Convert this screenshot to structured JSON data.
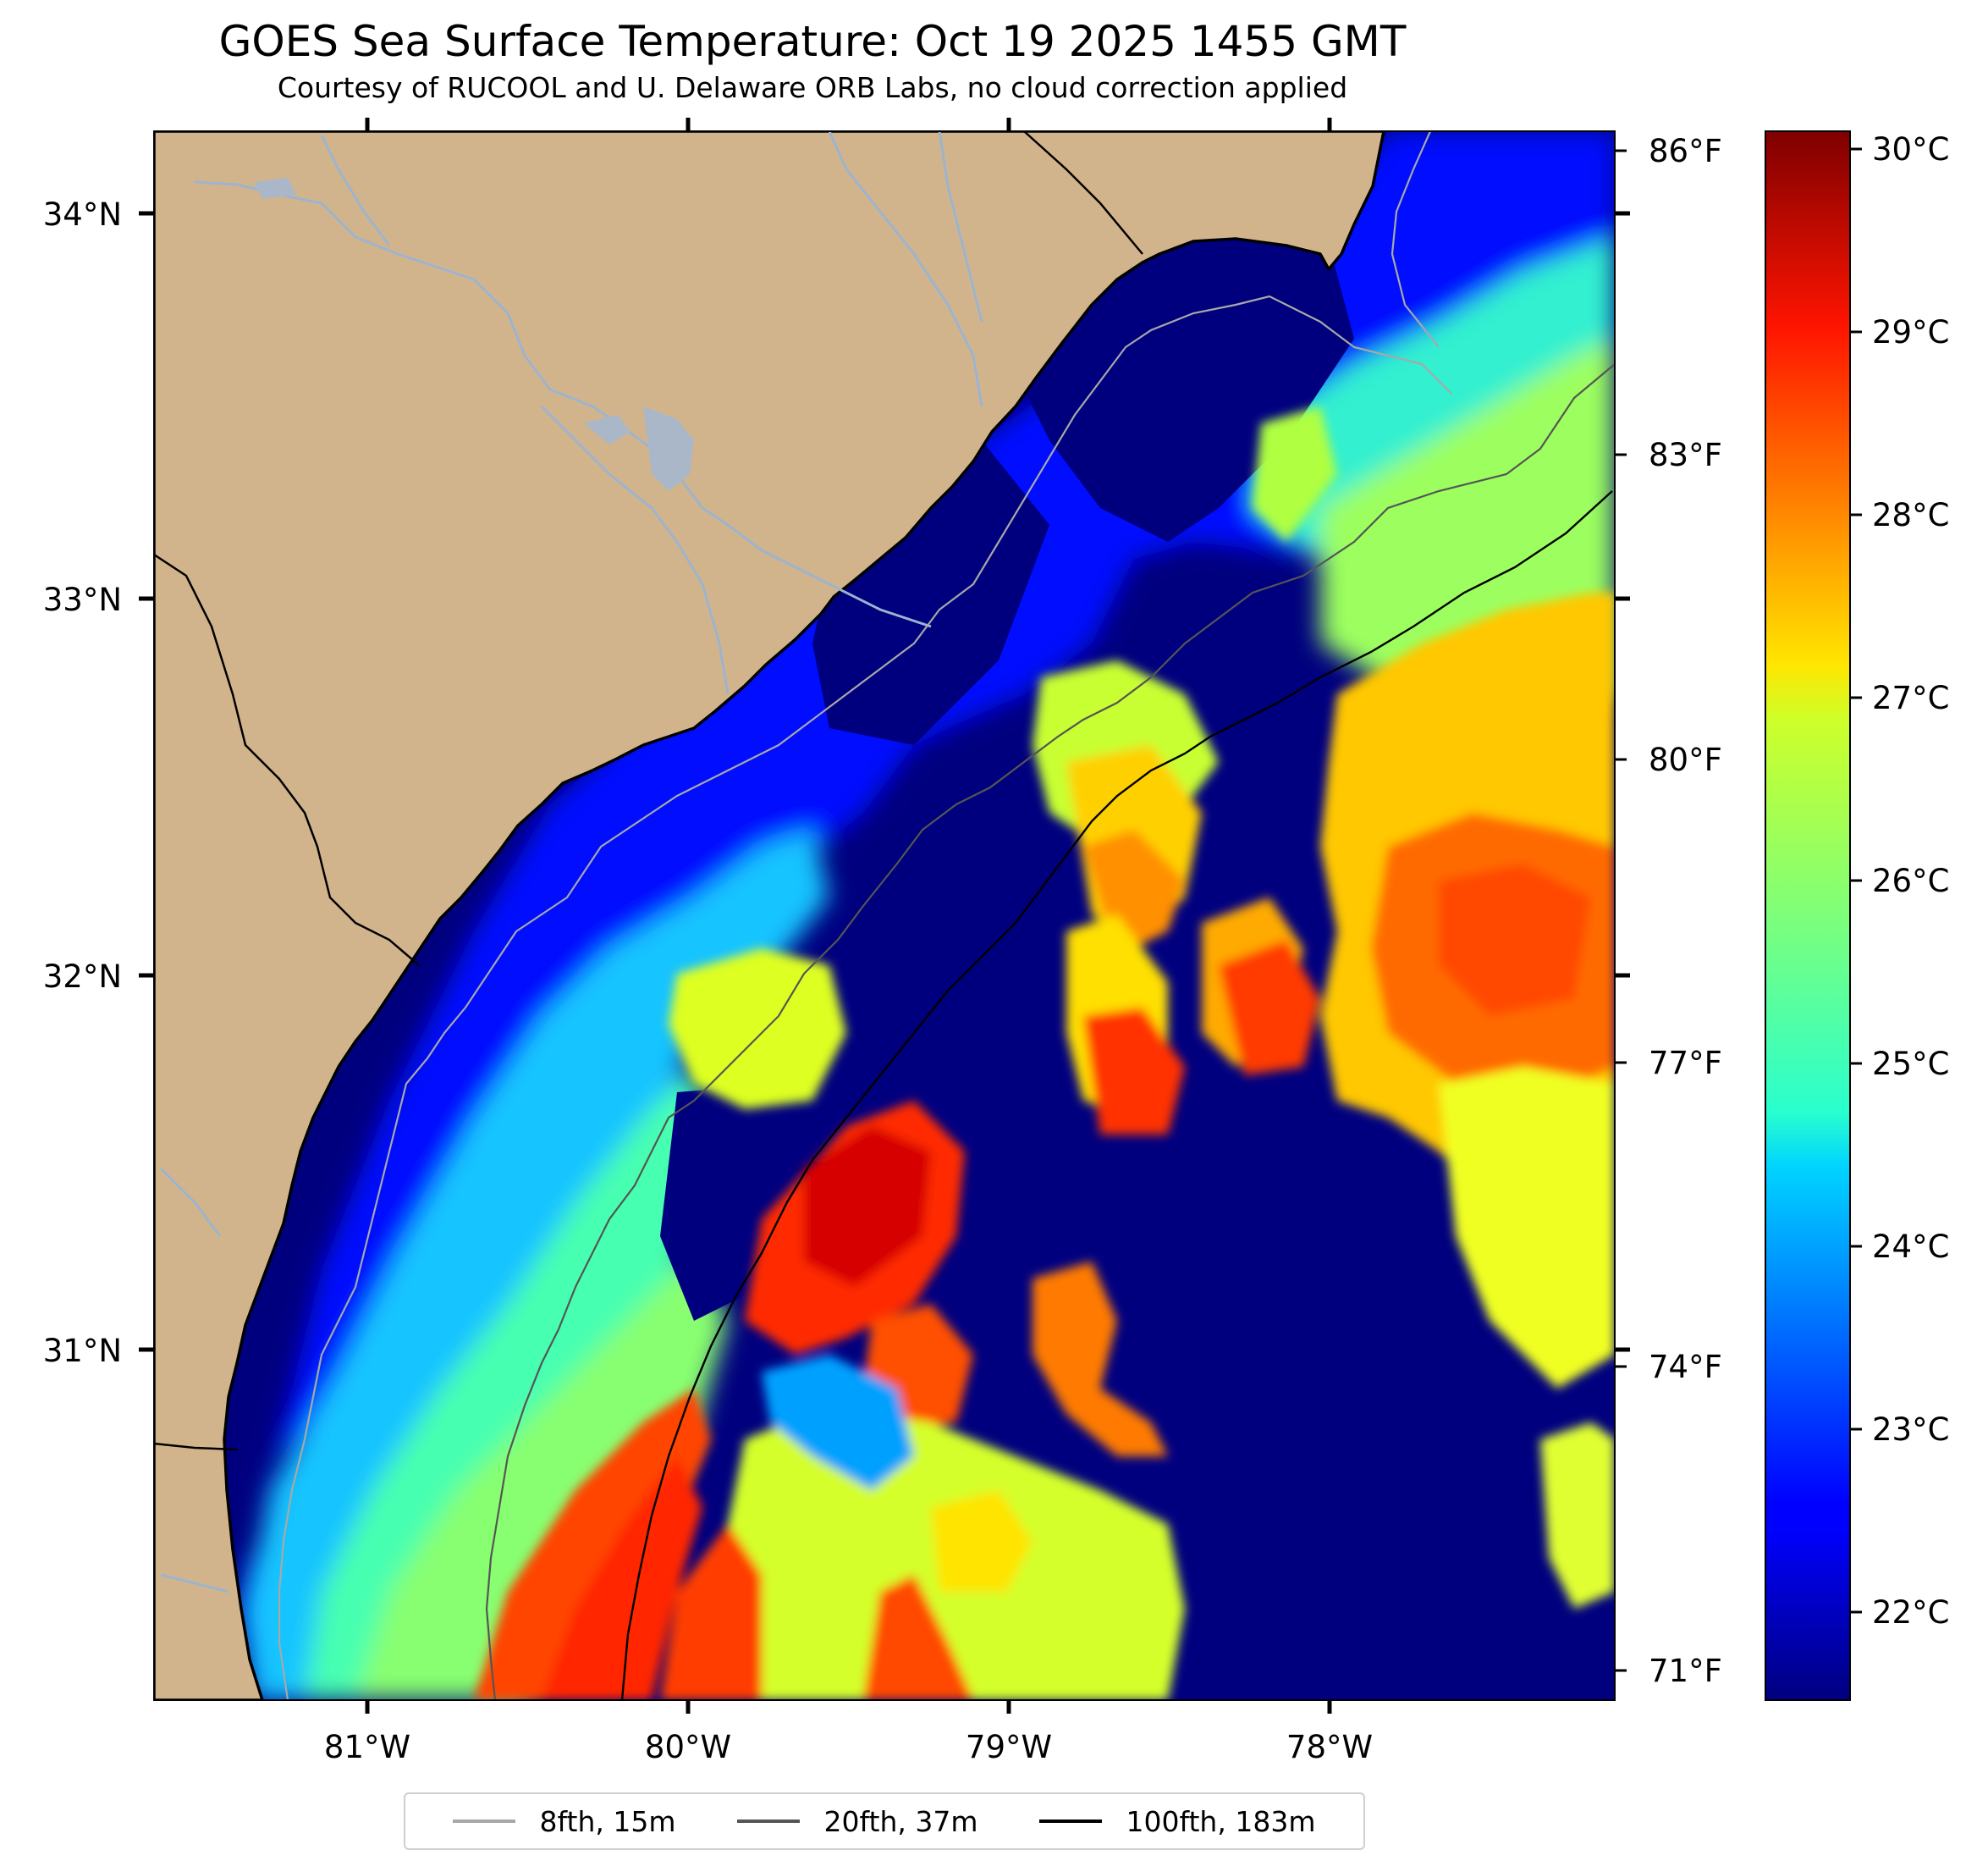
{
  "title": "GOES Sea Surface Temperature: Oct 19 2025 1455 GMT",
  "subtitle": "Courtesy of RUCOOL and U. Delaware ORB Labs, no cloud correction applied",
  "lat_labels": [
    "34°N",
    "33°N",
    "32°N",
    "31°N"
  ],
  "lon_labels": [
    "81°W",
    "80°W",
    "79°W",
    "78°W"
  ],
  "fahrenheit_labels": [
    "86°F",
    "83°F",
    "80°F",
    "77°F",
    "74°F",
    "71°F"
  ],
  "celsius_labels": [
    "30°C",
    "29°C",
    "28°C",
    "27°C",
    "26°C",
    "25°C",
    "24°C",
    "23°C",
    "22°C"
  ],
  "legend": [
    {
      "label": "8fth, 15m",
      "color": "#a8a8a8"
    },
    {
      "label": "20fth, 37m",
      "color": "#555555"
    },
    {
      "label": "100fth, 183m",
      "color": "#000000"
    }
  ],
  "colors": {
    "land": "#d2b48c",
    "rivers": "#9db4cf",
    "cold_sst": "#00007f",
    "colormap": "jet"
  }
}
